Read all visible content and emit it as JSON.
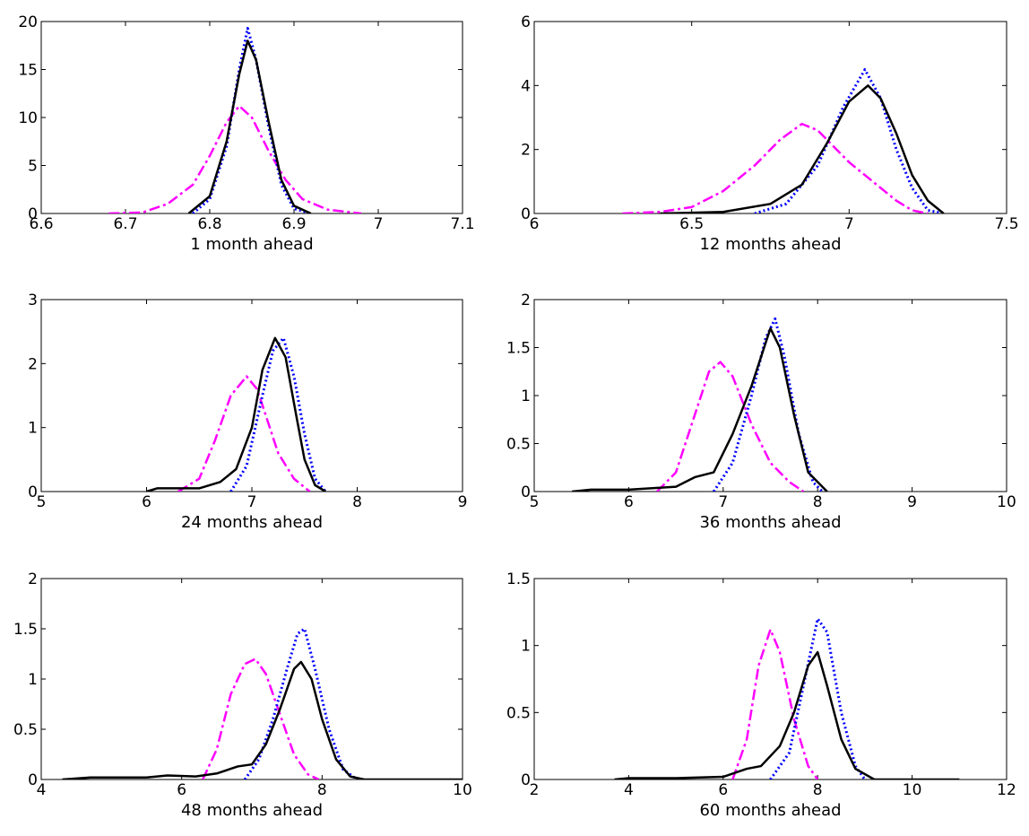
{
  "colors": {
    "blue": "#0000ff",
    "black": "#000000",
    "magenta": "#ff00ff"
  },
  "chart_data": [
    {
      "type": "line",
      "xlabel": "1 month ahead",
      "xlim": [
        6.6,
        7.1
      ],
      "ylim": [
        0,
        20
      ],
      "xticks": [
        6.6,
        6.7,
        6.8,
        6.9,
        7.0,
        7.1
      ],
      "xtick_labels": [
        "6.6",
        "6.7",
        "6.8",
        "6.9",
        "7",
        "7.1"
      ],
      "yticks": [
        0,
        5,
        10,
        15,
        20
      ],
      "ytick_labels": [
        "0",
        "5",
        "10",
        "15",
        "20"
      ],
      "grid": false,
      "series": [
        {
          "color": "#ff00ff",
          "style": "dashdot",
          "points": [
            [
              6.68,
              0
            ],
            [
              6.72,
              0.1
            ],
            [
              6.75,
              1
            ],
            [
              6.78,
              3
            ],
            [
              6.8,
              6
            ],
            [
              6.82,
              9.5
            ],
            [
              6.835,
              11.2
            ],
            [
              6.85,
              10
            ],
            [
              6.87,
              6.5
            ],
            [
              6.89,
              3.5
            ],
            [
              6.91,
              1.5
            ],
            [
              6.94,
              0.4
            ],
            [
              6.98,
              0
            ]
          ]
        },
        {
          "color": "#0000ff",
          "style": "dotted",
          "points": [
            [
              6.78,
              0
            ],
            [
              6.8,
              1.5
            ],
            [
              6.82,
              7
            ],
            [
              6.835,
              15
            ],
            [
              6.845,
              19.3
            ],
            [
              6.855,
              16
            ],
            [
              6.87,
              9
            ],
            [
              6.885,
              3
            ],
            [
              6.9,
              0.5
            ],
            [
              6.92,
              0
            ]
          ]
        },
        {
          "color": "#000000",
          "style": "solid",
          "points": [
            [
              6.775,
              0
            ],
            [
              6.8,
              1.8
            ],
            [
              6.82,
              7.5
            ],
            [
              6.835,
              14.5
            ],
            [
              6.845,
              18
            ],
            [
              6.855,
              16
            ],
            [
              6.87,
              9.5
            ],
            [
              6.885,
              3.5
            ],
            [
              6.9,
              0.8
            ],
            [
              6.92,
              0
            ]
          ]
        }
      ]
    },
    {
      "type": "line",
      "xlabel": "12 months ahead",
      "xlim": [
        6,
        7.5
      ],
      "ylim": [
        0,
        6
      ],
      "xticks": [
        6.0,
        6.5,
        7.0,
        7.5
      ],
      "xtick_labels": [
        "6",
        "6.5",
        "7",
        "7.5"
      ],
      "yticks": [
        0,
        2,
        4,
        6
      ],
      "ytick_labels": [
        "0",
        "2",
        "4",
        "6"
      ],
      "grid": false,
      "series": [
        {
          "color": "#ff00ff",
          "style": "dashdot",
          "points": [
            [
              6.28,
              0
            ],
            [
              6.4,
              0.05
            ],
            [
              6.5,
              0.2
            ],
            [
              6.6,
              0.7
            ],
            [
              6.7,
              1.5
            ],
            [
              6.78,
              2.3
            ],
            [
              6.85,
              2.8
            ],
            [
              6.9,
              2.6
            ],
            [
              6.95,
              2.1
            ],
            [
              7.0,
              1.6
            ],
            [
              7.05,
              1.2
            ],
            [
              7.1,
              0.8
            ],
            [
              7.15,
              0.4
            ],
            [
              7.2,
              0.1
            ],
            [
              7.25,
              0
            ]
          ]
        },
        {
          "color": "#0000ff",
          "style": "dotted",
          "points": [
            [
              6.7,
              0
            ],
            [
              6.8,
              0.3
            ],
            [
              6.9,
              1.5
            ],
            [
              6.98,
              3.3
            ],
            [
              7.05,
              4.5
            ],
            [
              7.1,
              3.6
            ],
            [
              7.15,
              2.0
            ],
            [
              7.2,
              0.8
            ],
            [
              7.25,
              0.1
            ],
            [
              7.3,
              0
            ]
          ]
        },
        {
          "color": "#000000",
          "style": "solid",
          "points": [
            [
              6.4,
              0
            ],
            [
              6.6,
              0.05
            ],
            [
              6.75,
              0.3
            ],
            [
              6.85,
              0.9
            ],
            [
              6.93,
              2.2
            ],
            [
              7.0,
              3.5
            ],
            [
              7.06,
              4.0
            ],
            [
              7.1,
              3.6
            ],
            [
              7.15,
              2.5
            ],
            [
              7.2,
              1.2
            ],
            [
              7.25,
              0.4
            ],
            [
              7.3,
              0
            ]
          ]
        }
      ]
    },
    {
      "type": "line",
      "xlabel": "24 months ahead",
      "xlim": [
        5,
        9
      ],
      "ylim": [
        0,
        3
      ],
      "xticks": [
        5,
        6,
        7,
        8,
        9
      ],
      "xtick_labels": [
        "5",
        "6",
        "7",
        "8",
        "9"
      ],
      "yticks": [
        0,
        1,
        2,
        3
      ],
      "ytick_labels": [
        "0",
        "1",
        "2",
        "3"
      ],
      "grid": false,
      "series": [
        {
          "color": "#ff00ff",
          "style": "dashdot",
          "points": [
            [
              6.3,
              0
            ],
            [
              6.5,
              0.2
            ],
            [
              6.65,
              0.8
            ],
            [
              6.8,
              1.5
            ],
            [
              6.95,
              1.8
            ],
            [
              7.05,
              1.6
            ],
            [
              7.15,
              1.1
            ],
            [
              7.25,
              0.6
            ],
            [
              7.4,
              0.2
            ],
            [
              7.55,
              0
            ]
          ]
        },
        {
          "color": "#0000ff",
          "style": "dotted",
          "points": [
            [
              6.8,
              0
            ],
            [
              6.95,
              0.4
            ],
            [
              7.1,
              1.5
            ],
            [
              7.2,
              2.2
            ],
            [
              7.3,
              2.4
            ],
            [
              7.4,
              1.8
            ],
            [
              7.5,
              0.9
            ],
            [
              7.6,
              0.2
            ],
            [
              7.7,
              0
            ]
          ]
        },
        {
          "color": "#000000",
          "style": "solid",
          "points": [
            [
              6.0,
              0
            ],
            [
              6.1,
              0.05
            ],
            [
              6.5,
              0.05
            ],
            [
              6.7,
              0.15
            ],
            [
              6.85,
              0.35
            ],
            [
              7.0,
              1.0
            ],
            [
              7.1,
              1.9
            ],
            [
              7.22,
              2.4
            ],
            [
              7.32,
              2.1
            ],
            [
              7.42,
              1.2
            ],
            [
              7.5,
              0.5
            ],
            [
              7.6,
              0.1
            ],
            [
              7.7,
              0
            ]
          ]
        }
      ]
    },
    {
      "type": "line",
      "xlabel": "36 months ahead",
      "xlim": [
        5,
        10
      ],
      "ylim": [
        0,
        2
      ],
      "xticks": [
        5,
        6,
        7,
        8,
        9,
        10
      ],
      "xtick_labels": [
        "5",
        "6",
        "7",
        "8",
        "9",
        "10"
      ],
      "yticks": [
        0,
        0.5,
        1,
        1.5,
        2
      ],
      "ytick_labels": [
        "0",
        "0.5",
        "1",
        "1.5",
        "2"
      ],
      "grid": false,
      "series": [
        {
          "color": "#ff00ff",
          "style": "dashdot",
          "points": [
            [
              6.3,
              0
            ],
            [
              6.5,
              0.2
            ],
            [
              6.7,
              0.8
            ],
            [
              6.85,
              1.25
            ],
            [
              6.97,
              1.35
            ],
            [
              7.1,
              1.2
            ],
            [
              7.3,
              0.7
            ],
            [
              7.5,
              0.3
            ],
            [
              7.7,
              0.1
            ],
            [
              7.85,
              0
            ]
          ]
        },
        {
          "color": "#0000ff",
          "style": "dotted",
          "points": [
            [
              6.9,
              0
            ],
            [
              7.1,
              0.3
            ],
            [
              7.3,
              1.0
            ],
            [
              7.45,
              1.6
            ],
            [
              7.55,
              1.8
            ],
            [
              7.65,
              1.4
            ],
            [
              7.8,
              0.6
            ],
            [
              7.95,
              0.1
            ],
            [
              8.05,
              0
            ]
          ]
        },
        {
          "color": "#000000",
          "style": "solid",
          "points": [
            [
              5.4,
              0
            ],
            [
              5.6,
              0.02
            ],
            [
              6.0,
              0.02
            ],
            [
              6.5,
              0.05
            ],
            [
              6.7,
              0.15
            ],
            [
              6.9,
              0.2
            ],
            [
              7.1,
              0.6
            ],
            [
              7.3,
              1.1
            ],
            [
              7.5,
              1.7
            ],
            [
              7.6,
              1.5
            ],
            [
              7.75,
              0.8
            ],
            [
              7.9,
              0.2
            ],
            [
              8.1,
              0
            ]
          ]
        }
      ]
    },
    {
      "type": "line",
      "xlabel": "48 months ahead",
      "xlim": [
        4,
        10
      ],
      "ylim": [
        0,
        2
      ],
      "xticks": [
        4,
        6,
        8,
        10
      ],
      "xtick_labels": [
        "4",
        "6",
        "8",
        "10"
      ],
      "yticks": [
        0,
        0.5,
        1,
        1.5,
        2
      ],
      "ytick_labels": [
        "0",
        "0.5",
        "1",
        "1.5",
        "2"
      ],
      "grid": false,
      "series": [
        {
          "color": "#ff00ff",
          "style": "dashdot",
          "points": [
            [
              6.3,
              0
            ],
            [
              6.5,
              0.3
            ],
            [
              6.7,
              0.85
            ],
            [
              6.9,
              1.15
            ],
            [
              7.05,
              1.2
            ],
            [
              7.2,
              1.05
            ],
            [
              7.4,
              0.65
            ],
            [
              7.6,
              0.25
            ],
            [
              7.8,
              0.05
            ],
            [
              7.95,
              0
            ]
          ]
        },
        {
          "color": "#0000ff",
          "style": "dotted",
          "points": [
            [
              6.9,
              0
            ],
            [
              7.1,
              0.2
            ],
            [
              7.3,
              0.6
            ],
            [
              7.5,
              1.1
            ],
            [
              7.65,
              1.45
            ],
            [
              7.75,
              1.5
            ],
            [
              7.9,
              1.1
            ],
            [
              8.1,
              0.5
            ],
            [
              8.3,
              0.1
            ],
            [
              8.5,
              0
            ]
          ]
        },
        {
          "color": "#000000",
          "style": "solid",
          "points": [
            [
              4.3,
              0
            ],
            [
              4.7,
              0.02
            ],
            [
              5.0,
              0.02
            ],
            [
              5.5,
              0.02
            ],
            [
              5.8,
              0.04
            ],
            [
              6.2,
              0.03
            ],
            [
              6.5,
              0.06
            ],
            [
              6.8,
              0.13
            ],
            [
              7.0,
              0.15
            ],
            [
              7.2,
              0.35
            ],
            [
              7.4,
              0.7
            ],
            [
              7.6,
              1.1
            ],
            [
              7.7,
              1.17
            ],
            [
              7.85,
              1.0
            ],
            [
              8.0,
              0.6
            ],
            [
              8.2,
              0.2
            ],
            [
              8.4,
              0.03
            ],
            [
              8.6,
              0
            ],
            [
              10,
              0
            ]
          ]
        }
      ]
    },
    {
      "type": "line",
      "xlabel": "60 months ahead",
      "xlim": [
        2,
        12
      ],
      "ylim": [
        0,
        1.5
      ],
      "xticks": [
        2,
        4,
        6,
        8,
        10,
        12
      ],
      "xtick_labels": [
        "2",
        "4",
        "6",
        "8",
        "10",
        "12"
      ],
      "yticks": [
        0,
        0.5,
        1,
        1.5
      ],
      "ytick_labels": [
        "0",
        "0.5",
        "1",
        "1.5"
      ],
      "grid": false,
      "series": [
        {
          "color": "#ff00ff",
          "style": "dashdot",
          "points": [
            [
              6.2,
              0
            ],
            [
              6.5,
              0.3
            ],
            [
              6.75,
              0.85
            ],
            [
              7.0,
              1.12
            ],
            [
              7.2,
              0.95
            ],
            [
              7.5,
              0.45
            ],
            [
              7.8,
              0.1
            ],
            [
              8.0,
              0
            ]
          ]
        },
        {
          "color": "#0000ff",
          "style": "dotted",
          "points": [
            [
              7.0,
              0
            ],
            [
              7.4,
              0.2
            ],
            [
              7.7,
              0.7
            ],
            [
              8.0,
              1.2
            ],
            [
              8.2,
              1.1
            ],
            [
              8.5,
              0.5
            ],
            [
              8.8,
              0.1
            ],
            [
              9.0,
              0
            ]
          ]
        },
        {
          "color": "#000000",
          "style": "solid",
          "points": [
            [
              3.7,
              0
            ],
            [
              4.0,
              0.01
            ],
            [
              5.0,
              0.01
            ],
            [
              6.0,
              0.02
            ],
            [
              6.5,
              0.08
            ],
            [
              6.8,
              0.1
            ],
            [
              7.2,
              0.25
            ],
            [
              7.5,
              0.5
            ],
            [
              7.8,
              0.85
            ],
            [
              8.0,
              0.95
            ],
            [
              8.2,
              0.7
            ],
            [
              8.5,
              0.3
            ],
            [
              8.8,
              0.08
            ],
            [
              9.2,
              0
            ],
            [
              11,
              0
            ]
          ]
        }
      ]
    }
  ]
}
